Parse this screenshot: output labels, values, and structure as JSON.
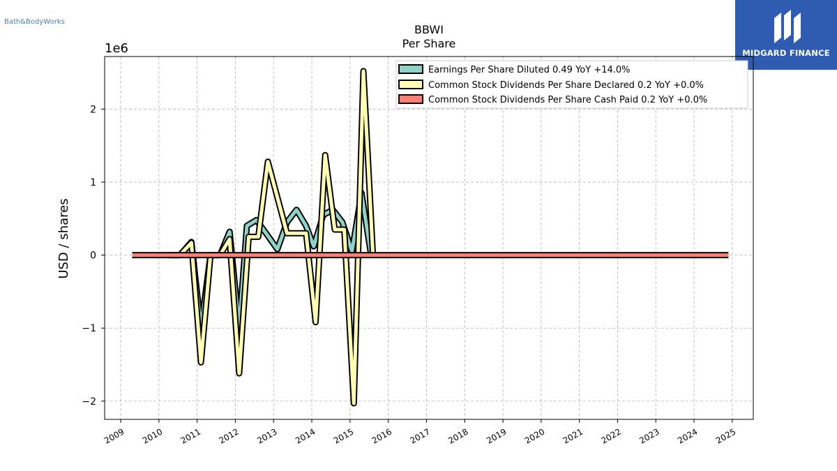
{
  "brand": {
    "company_logo_text": "Bath&BodyWorks",
    "publisher": "MIDGARD FINANCE"
  },
  "colors": {
    "eps": "#8dd3c7",
    "declared": "#ffffb3",
    "cash": "#fb8072",
    "grid": "#b0b0b0",
    "logo_bg": "#2f5bb0"
  },
  "chart_data": {
    "type": "line",
    "title": "BBWI",
    "subtitle": "Per  Share",
    "ylabel": "USD / shares",
    "xlabel": "",
    "y_multiplier_label": "1e6",
    "ylim": [
      -2.25,
      2.72
    ],
    "xlim": [
      2008.58,
      2025.55
    ],
    "y_ticks": [
      -2,
      -1,
      0,
      1,
      2
    ],
    "y_tick_labels": [
      "−2",
      "−1",
      "0",
      "1",
      "2"
    ],
    "x_ticks": [
      2009,
      2010,
      2011,
      2012,
      2013,
      2014,
      2015,
      2016,
      2017,
      2018,
      2019,
      2020,
      2021,
      2022,
      2023,
      2024,
      2025
    ],
    "x_tick_labels": [
      "2009",
      "2010",
      "2011",
      "2012",
      "2013",
      "2014",
      "2015",
      "2016",
      "2017",
      "2018",
      "2019",
      "2020",
      "2021",
      "2022",
      "2023",
      "2024",
      "2025"
    ],
    "grid": true,
    "legend_position": "top-right",
    "series": [
      {
        "name": "Earnings Per Share Diluted  0.49 YoY +14.0%",
        "color_key": "eps",
        "points": [
          [
            2010.25,
            0
          ],
          [
            2010.55,
            0
          ],
          [
            2010.85,
            0.18
          ],
          [
            2011.1,
            -1.0
          ],
          [
            2011.35,
            0
          ],
          [
            2011.6,
            0
          ],
          [
            2011.85,
            0.32
          ],
          [
            2012.1,
            -1.0
          ],
          [
            2012.3,
            0.4
          ],
          [
            2012.55,
            0.48
          ],
          [
            2012.8,
            0.3
          ],
          [
            2013.1,
            0.08
          ],
          [
            2013.35,
            0.45
          ],
          [
            2013.6,
            0.62
          ],
          [
            2013.85,
            0.4
          ],
          [
            2014.05,
            0.12
          ],
          [
            2014.3,
            0.55
          ],
          [
            2014.55,
            0.62
          ],
          [
            2014.8,
            0.45
          ],
          [
            2015.05,
            0.05
          ],
          [
            2015.3,
            0.85
          ],
          [
            2015.55,
            0
          ]
        ]
      },
      {
        "name": "Common Stock Dividends Per Share Declared  0.2 YoY +0.0%",
        "color_key": "declared",
        "points": [
          [
            2010.3,
            0
          ],
          [
            2010.55,
            0
          ],
          [
            2010.85,
            0.17
          ],
          [
            2011.1,
            -1.47
          ],
          [
            2011.35,
            0
          ],
          [
            2011.6,
            0
          ],
          [
            2011.85,
            0.22
          ],
          [
            2012.1,
            -1.62
          ],
          [
            2012.35,
            0.25
          ],
          [
            2012.6,
            0.25
          ],
          [
            2012.85,
            1.28
          ],
          [
            2013.35,
            0.3
          ],
          [
            2013.85,
            0.3
          ],
          [
            2014.1,
            -0.92
          ],
          [
            2014.35,
            1.37
          ],
          [
            2014.6,
            0.35
          ],
          [
            2014.85,
            0.35
          ],
          [
            2015.1,
            -2.03
          ],
          [
            2015.35,
            2.52
          ],
          [
            2015.6,
            0
          ]
        ]
      },
      {
        "name": "Common Stock Dividends Per Share Cash Paid  0.2 YoY +0.0%",
        "color_key": "cash",
        "points": [
          [
            2009.3,
            0
          ],
          [
            2024.9,
            0
          ]
        ]
      }
    ]
  }
}
